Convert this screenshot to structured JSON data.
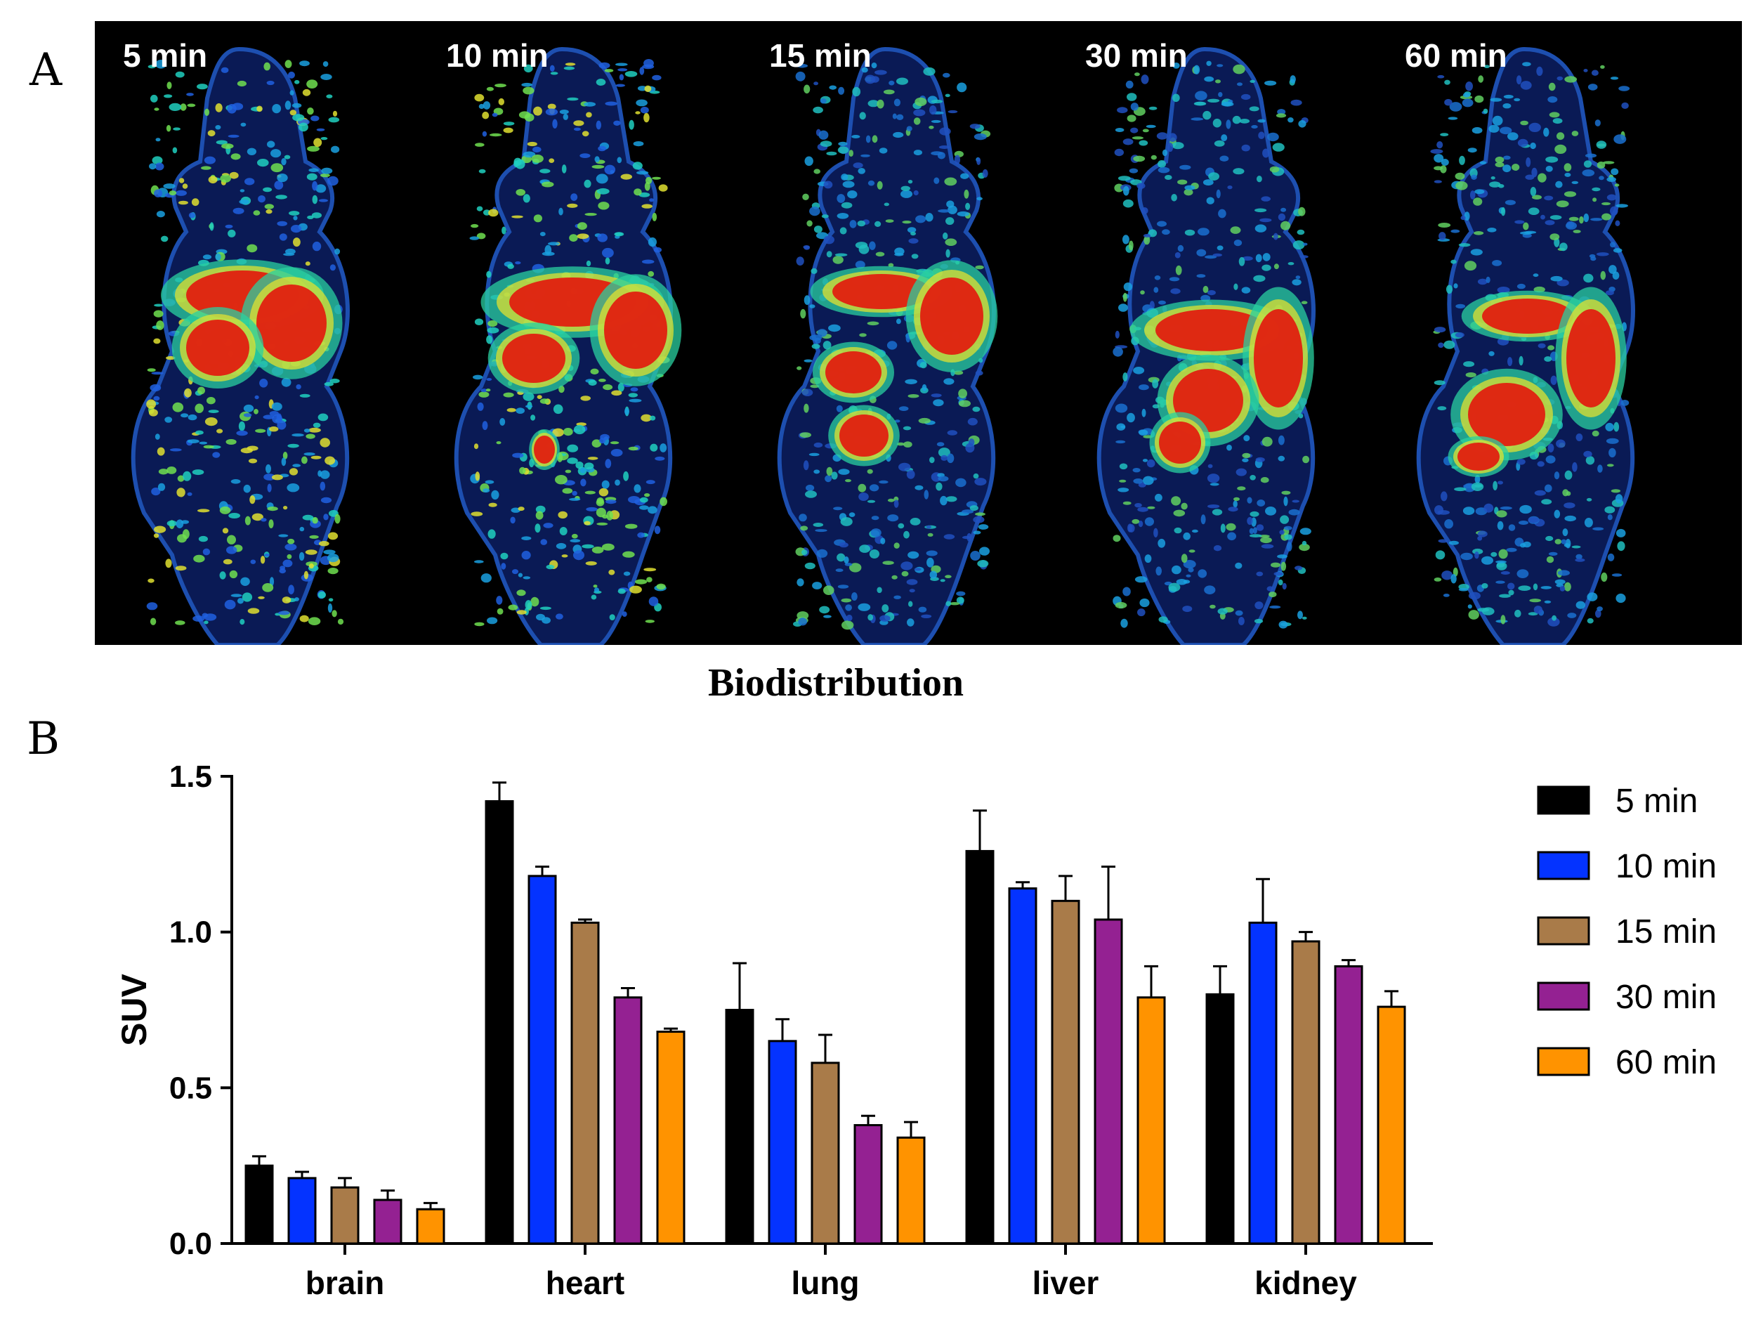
{
  "panel_labels": {
    "a": "A",
    "b": "B"
  },
  "pet_frames": [
    {
      "label": "5 min"
    },
    {
      "label": "10 min"
    },
    {
      "label": "15 min"
    },
    {
      "label": "30 min"
    },
    {
      "label": "60 min"
    }
  ],
  "colors": {
    "5 min": "#000000",
    "10 min": "#0433ff",
    "15 min": "#a97b49",
    "30 min": "#942192",
    "60 min": "#ff9300"
  },
  "chart_data": {
    "type": "bar",
    "title": "Biodistribution",
    "xlabel": "",
    "ylabel": "SUV",
    "ylim": [
      0,
      1.5
    ],
    "yticks": [
      "0.0",
      "0.5",
      "1.0",
      "1.5"
    ],
    "categories": [
      "brain",
      "heart",
      "lung",
      "liver",
      "kidney"
    ],
    "legend_position": "right",
    "series": [
      {
        "name": "5 min",
        "values": [
          0.25,
          1.42,
          0.75,
          1.26,
          0.8
        ],
        "errors": [
          0.03,
          0.06,
          0.15,
          0.13,
          0.09
        ]
      },
      {
        "name": "10 min",
        "values": [
          0.21,
          1.18,
          0.65,
          1.14,
          1.03
        ],
        "errors": [
          0.02,
          0.03,
          0.07,
          0.02,
          0.14
        ]
      },
      {
        "name": "15 min",
        "values": [
          0.18,
          1.03,
          0.58,
          1.1,
          0.97
        ],
        "errors": [
          0.03,
          0.01,
          0.09,
          0.08,
          0.03
        ]
      },
      {
        "name": "30 min",
        "values": [
          0.14,
          0.79,
          0.38,
          1.04,
          0.89
        ],
        "errors": [
          0.03,
          0.03,
          0.03,
          0.17,
          0.02
        ]
      },
      {
        "name": "60 min",
        "values": [
          0.11,
          0.68,
          0.34,
          0.79,
          0.76
        ],
        "errors": [
          0.02,
          0.01,
          0.05,
          0.1,
          0.05
        ]
      }
    ]
  }
}
